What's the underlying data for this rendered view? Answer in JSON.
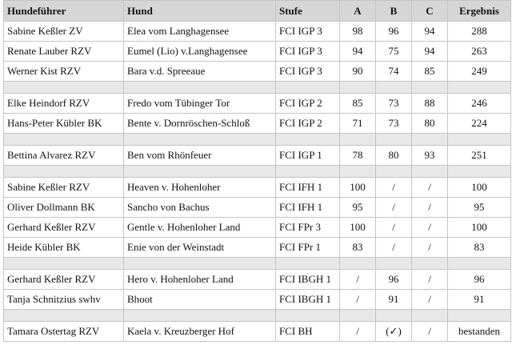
{
  "table": {
    "header": [
      "Hundeführer",
      "Hund",
      "Stufe",
      "A",
      "B",
      "C",
      "Ergebnis"
    ],
    "groups": [
      {
        "rows": [
          [
            "Sabine Keßler ZV",
            "Elea vom Langhagensee",
            "FCI IGP 3",
            98,
            96,
            94,
            288
          ],
          [
            "Renate Lauber RZV",
            "Eumel (Lio) v.Langhagensee",
            "FCI IGP 3",
            94,
            75,
            94,
            263
          ],
          [
            "Werner Kist RZV",
            "Bara v.d. Spreeaue",
            "FCI IGP 3",
            90,
            74,
            85,
            249
          ]
        ]
      },
      {
        "rows": [
          [
            "Elke Heindorf RZV",
            "Fredo vom Tübinger Tor",
            "FCI IGP 2",
            85,
            73,
            88,
            246
          ],
          [
            "Hans-Peter Kübler BK",
            "Bente v. Dornröschen-Schloß",
            "FCI IGP 2",
            71,
            73,
            80,
            224
          ]
        ]
      },
      {
        "rows": [
          [
            "Bettina Alvarez RZV",
            "Ben vom Rhönfeuer",
            "FCI IGP 1",
            78,
            80,
            93,
            251
          ]
        ]
      },
      {
        "rows": [
          [
            "Sabine Keßler RZV",
            "Heaven v. Hohenloher",
            "FCI IFH 1",
            100,
            "/",
            "/",
            100
          ],
          [
            "Oliver Dollmann BK",
            "Sancho von Bachus",
            "FCI IFH 1",
            95,
            "/",
            "/",
            95
          ],
          [
            "Gerhard Keßler RZV",
            "Gentle v. Hohenloher Land",
            "FCI FPr 3",
            100,
            "/",
            "/",
            100
          ],
          [
            "Heide Kübler BK",
            "Enie von der Weinstadt",
            "FCI FPr 1",
            83,
            "/",
            "/",
            83
          ]
        ]
      },
      {
        "rows": [
          [
            "Gerhard Keßler RZV",
            "Hero v. Hohenloher Land",
            "FCI IBGH 1",
            "/",
            96,
            "/",
            96
          ],
          [
            "Tanja Schnitzius swhv",
            "Bhoot",
            "FCI IBGH 1",
            "/",
            91,
            "/",
            91
          ]
        ]
      },
      {
        "rows": [
          [
            "Tamara Ostertag RZV",
            "Kaela v. Kreuzberger Hof",
            "FCI BH",
            "/",
            "(✓)",
            "/",
            "bestanden"
          ]
        ]
      }
    ]
  }
}
